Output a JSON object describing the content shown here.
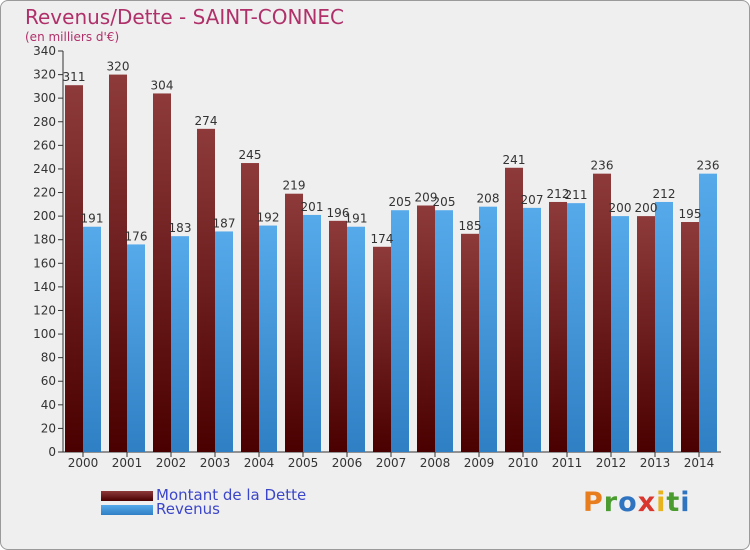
{
  "title": "Revenus/Dette - SAINT-CONNEC",
  "subtitle": "(en milliers d'€)",
  "chart_data": {
    "type": "bar",
    "categories": [
      "2000",
      "2001",
      "2002",
      "2003",
      "2004",
      "2005",
      "2006",
      "2007",
      "2008",
      "2009",
      "2010",
      "2011",
      "2012",
      "2013",
      "2014"
    ],
    "series": [
      {
        "name": "Montant de la Dette",
        "values": [
          311,
          320,
          304,
          274,
          245,
          219,
          196,
          174,
          209,
          185,
          241,
          212,
          236,
          200,
          195
        ]
      },
      {
        "name": "Revenus",
        "values": [
          191,
          176,
          183,
          187,
          192,
          201,
          191,
          205,
          205,
          208,
          207,
          211,
          200,
          212,
          236
        ]
      }
    ],
    "ylim": [
      0,
      340
    ],
    "ytick_step": 20,
    "grid": false,
    "legend": "bottom-left",
    "xlabel": "",
    "ylabel": ""
  },
  "legend": {
    "items": [
      {
        "label": "Montant de la Dette"
      },
      {
        "label": "Revenus"
      }
    ]
  },
  "logo": {
    "letters": [
      "P",
      "r",
      "o",
      "x",
      "i",
      "t",
      "i"
    ]
  },
  "colors": {
    "title": "#b0306a",
    "dette_top": "#8e3a3a",
    "dette_bottom": "#4a0000",
    "revenus_top": "#56aaea",
    "revenus_bottom": "#2f7fc4",
    "legend_text": "#3c46c8",
    "logo": [
      "#e87d1e",
      "#4a9c2f",
      "#2f74c0",
      "#d9362e",
      "#e8b41e",
      "#4a9c2f",
      "#2f74c0"
    ]
  }
}
